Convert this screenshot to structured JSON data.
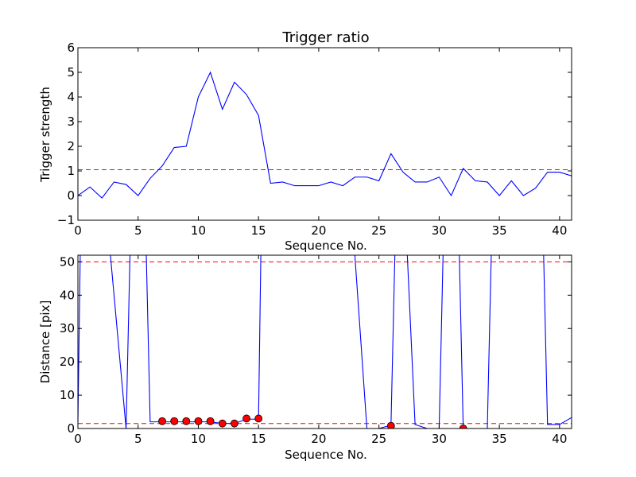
{
  "chart_data": [
    {
      "type": "line",
      "title": "Trigger ratio",
      "xlabel": "Sequence No.",
      "ylabel": "Trigger strength",
      "xlim": [
        0,
        41
      ],
      "ylim": [
        -1,
        6
      ],
      "xticks": [
        0,
        5,
        10,
        15,
        20,
        25,
        30,
        35,
        40
      ],
      "yticks": [
        -1,
        0,
        1,
        2,
        3,
        4,
        5,
        6
      ],
      "grid": false,
      "series": [
        {
          "color": "#0000ff",
          "style": "solid",
          "x": [
            0,
            1,
            2,
            3,
            4,
            5,
            6,
            7,
            8,
            9,
            10,
            11,
            12,
            13,
            14,
            15,
            16,
            17,
            18,
            19,
            20,
            21,
            22,
            23,
            24,
            25,
            26,
            27,
            28,
            29,
            30,
            31,
            32,
            33,
            34,
            35,
            36,
            37,
            38,
            39,
            40,
            41
          ],
          "y": [
            0,
            0.35,
            -0.1,
            0.55,
            0.45,
            0,
            0.7,
            1.2,
            1.95,
            2,
            4,
            5,
            3.5,
            4.6,
            4.1,
            3.25,
            0.5,
            0.55,
            0.4,
            0.4,
            0.4,
            0.55,
            0.4,
            0.75,
            0.75,
            0.6,
            1.7,
            0.95,
            0.55,
            0.55,
            0.75,
            0,
            1.1,
            0.6,
            0.55,
            0,
            0.6,
            0,
            0.3,
            0.95,
            0.95,
            0.8
          ]
        }
      ],
      "reference_lines": [
        {
          "axis": "y",
          "value": 1.05,
          "color": "#ff0000",
          "style": "dashed"
        }
      ]
    },
    {
      "type": "line",
      "title": "",
      "xlabel": "Sequence No.",
      "ylabel": "Distance [pix]",
      "xlim": [
        0,
        41
      ],
      "ylim": [
        0,
        52
      ],
      "xticks": [
        0,
        5,
        10,
        15,
        20,
        25,
        30,
        35,
        40
      ],
      "yticks": [
        0,
        10,
        20,
        30,
        40,
        50
      ],
      "grid": false,
      "series": [
        {
          "color": "#0000ff",
          "style": "solid",
          "x": [
            0,
            0.3,
            2,
            4,
            4.5,
            5.5,
            6,
            7,
            8,
            9,
            10,
            11,
            12,
            13,
            14,
            15,
            15.3,
            22,
            23,
            24,
            25,
            26,
            26.5,
            27,
            28,
            29,
            30,
            30.5,
            31.5,
            32,
            34,
            34.5,
            38.5,
            39,
            40,
            41
          ],
          "y": [
            2,
            80,
            80,
            0,
            80,
            80,
            2,
            2,
            2,
            2,
            2,
            2,
            1.5,
            1.5,
            2.8,
            2.8,
            80,
            52,
            52,
            0,
            0,
            1,
            80,
            80,
            1.2,
            0,
            0,
            80,
            80,
            0,
            0,
            80,
            80,
            1.2,
            1.2,
            3.3
          ]
        },
        {
          "color": "#ff0000",
          "style": "markers",
          "x": [
            7,
            8,
            9,
            10,
            11,
            12,
            13,
            14,
            15,
            26,
            32
          ],
          "y": [
            2.2,
            2.2,
            2.2,
            2.2,
            2.2,
            1.5,
            1.5,
            3,
            3,
            0.8,
            0
          ]
        }
      ],
      "reference_lines": [
        {
          "axis": "y",
          "value": 50,
          "color": "#ff0000",
          "style": "dashed"
        },
        {
          "axis": "y",
          "value": 1.5,
          "color": "#ff0000",
          "style": "dashed"
        }
      ]
    }
  ]
}
